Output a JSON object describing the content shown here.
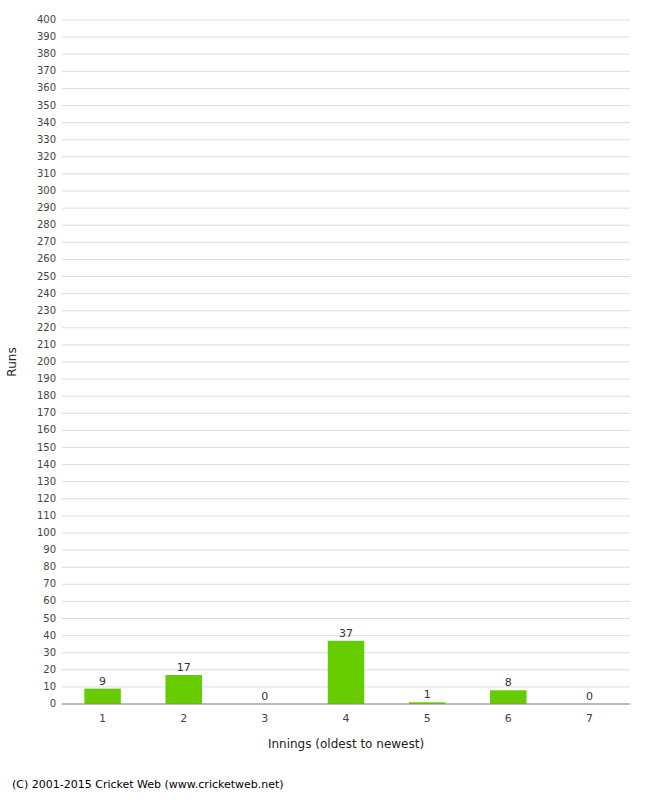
{
  "chart_data": {
    "type": "bar",
    "xlabel": "Innings (oldest to newest)",
    "ylabel": "Runs",
    "categories": [
      "1",
      "2",
      "3",
      "4",
      "5",
      "6",
      "7"
    ],
    "values": [
      9,
      17,
      0,
      37,
      1,
      8,
      0
    ],
    "color": "#66cc00",
    "ylim": [
      0,
      400
    ],
    "yticks": [
      0,
      10,
      20,
      30,
      40,
      50,
      60,
      70,
      80,
      90,
      100,
      110,
      120,
      130,
      140,
      150,
      160,
      170,
      180,
      190,
      200,
      210,
      220,
      230,
      240,
      250,
      260,
      270,
      280,
      290,
      300,
      310,
      320,
      330,
      340,
      350,
      360,
      370,
      380,
      390,
      400
    ],
    "grid": true,
    "data_labels": true,
    "footer": "(C) 2001-2015 Cricket Web (www.cricketweb.net)"
  }
}
